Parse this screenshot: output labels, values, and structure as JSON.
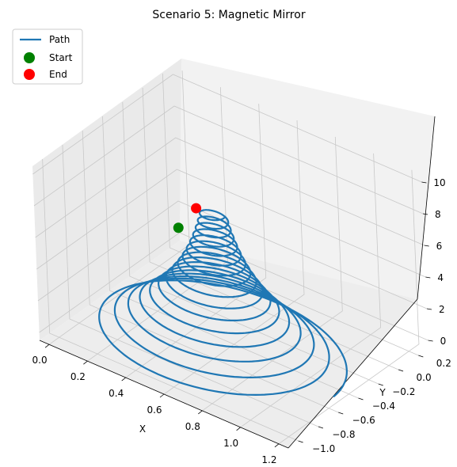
{
  "chart_data": {
    "type": "line",
    "projection": "3d",
    "title": "Scenario 5: Magnetic Mirror",
    "xlabel": "X",
    "ylabel": "Y",
    "zlabel": "",
    "xlim": [
      -0.05,
      1.25
    ],
    "ylim": [
      -1.1,
      0.3
    ],
    "zlim": [
      -0.5,
      10.5
    ],
    "xticks": [
      "0.0",
      "0.2",
      "0.4",
      "0.6",
      "0.8",
      "1.0",
      "1.2"
    ],
    "yticks": [
      "−1.0",
      "−0.8",
      "−0.6",
      "−0.4",
      "−0.2",
      "0.0",
      "0.2"
    ],
    "zticks": [
      "0",
      "2",
      "4",
      "6",
      "8",
      "10"
    ],
    "grid": true,
    "legend": {
      "placement": "top-left",
      "entries": [
        "Path",
        "Start",
        "End"
      ]
    },
    "series": [
      {
        "name": "Path",
        "kind": "helix",
        "color": "#1f77b4",
        "center": [
          0.6,
          -0.55
        ],
        "z_range": [
          0.0,
          8.5
        ],
        "radius_at_bottom": 0.6,
        "radius_at_top": 0.06,
        "turns": 16
      },
      {
        "name": "Start",
        "kind": "point",
        "color": "#008000",
        "x": 0.11,
        "y": -0.0,
        "z": 2.5
      },
      {
        "name": "End",
        "kind": "point",
        "color": "#ff0000",
        "x": 0.51,
        "y": -0.55,
        "z": 8.3
      }
    ]
  }
}
